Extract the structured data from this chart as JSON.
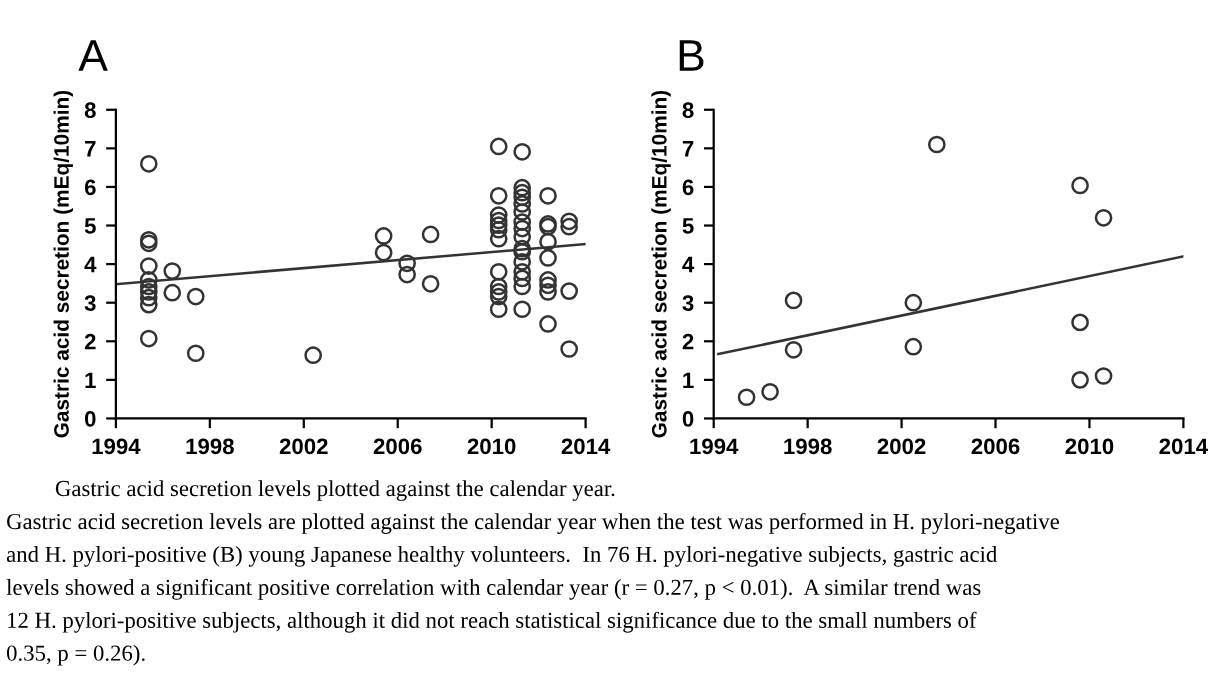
{
  "chart_data": [
    {
      "type": "scatter",
      "title": "A",
      "xlabel": null,
      "ylabel": "Gastric acid secretion (mEq/10min)",
      "xlim": [
        1994,
        2014
      ],
      "xticks": [
        1994,
        1998,
        2002,
        2006,
        2010,
        2014
      ],
      "ylim": [
        0,
        8
      ],
      "yticks": [
        0,
        1,
        2,
        3,
        4,
        5,
        6,
        7,
        8
      ],
      "grid": false,
      "legend": false,
      "series": [
        {
          "marker": "circle",
          "color": "#333333",
          "x": [
            1995.4,
            1995.4,
            1995.4,
            1995.4,
            1995.4,
            1995.4,
            1995.4,
            1995.4,
            1995.4,
            1995.4,
            1996.4,
            1996.4,
            1997.4,
            1997.4,
            2002.4,
            2005.4,
            2005.4,
            2006.4,
            2006.4,
            2007.4,
            2007.4,
            2010.3,
            2010.3,
            2010.3,
            2010.3,
            2010.3,
            2010.3,
            2010.3,
            2010.3,
            2010.3,
            2010.3,
            2010.3,
            2010.3,
            2011.3,
            2011.3,
            2011.3,
            2011.3,
            2011.3,
            2011.3,
            2011.3,
            2011.3,
            2011.3,
            2011.3,
            2011.3,
            2011.3,
            2011.3,
            2011.3,
            2011.3,
            2011.3,
            2012.4,
            2012.4,
            2012.4,
            2012.4,
            2012.4,
            2012.4,
            2012.4,
            2012.4,
            2012.4,
            2013.3,
            2013.3,
            2013.3,
            2013.3
          ],
          "values": [
            6.6,
            4.63,
            4.54,
            3.95,
            3.59,
            3.42,
            3.28,
            3.13,
            2.95,
            2.07,
            3.82,
            3.26,
            3.16,
            1.69,
            1.64,
            4.73,
            4.3,
            4.02,
            3.73,
            4.77,
            3.49,
            7.05,
            5.77,
            5.27,
            5.13,
            5.01,
            4.89,
            4.66,
            3.8,
            3.42,
            3.28,
            3.16,
            2.83,
            6.91,
            5.98,
            5.85,
            5.73,
            5.56,
            5.35,
            5.09,
            4.92,
            4.71,
            4.4,
            4.32,
            4.06,
            3.8,
            3.63,
            3.42,
            2.83,
            5.77,
            5.04,
            4.97,
            4.58,
            4.16,
            3.59,
            3.45,
            3.28,
            2.45,
            5.11,
            4.97,
            3.3,
            1.8
          ]
        },
        {
          "type": "line",
          "color": "#333333",
          "x": [
            1994,
            2014
          ],
          "values": [
            3.48,
            4.52
          ]
        }
      ]
    },
    {
      "type": "scatter",
      "title": "B",
      "xlabel": null,
      "ylabel": "Gastric acid secretion (mEq/10min)",
      "xlim": [
        1994,
        2014
      ],
      "xticks": [
        1994,
        1998,
        2002,
        2006,
        2010,
        2014
      ],
      "ylim": [
        0,
        8
      ],
      "yticks": [
        0,
        1,
        2,
        3,
        4,
        5,
        6,
        7,
        8
      ],
      "grid": false,
      "legend": false,
      "series": [
        {
          "marker": "circle",
          "color": "#333333",
          "x": [
            1995.4,
            1996.4,
            1997.4,
            1997.4,
            2002.5,
            2002.5,
            2003.5,
            2009.6,
            2009.6,
            2009.6,
            2010.6,
            2010.6
          ],
          "values": [
            0.55,
            0.69,
            3.06,
            1.78,
            3.0,
            1.86,
            7.1,
            6.04,
            2.49,
            1.0,
            5.2,
            1.1
          ]
        },
        {
          "type": "line",
          "color": "#333333",
          "x": [
            1994.2,
            2014
          ],
          "values": [
            1.67,
            4.2
          ]
        }
      ],
      "annotations": [
        "Gastric acid secretion levels plotted against the calendar year.",
        "Gastric acid secretion levels are plotted against the calendar year when the test was performed in H. pylori-negative",
        "and H. pylori-positive (B) young Japanese healthy volunteers.  In 76 H. pylori-negative subjects, gastric acid",
        "levels showed a significant positive correlation with calendar year (r = 0.27, p < 0.01).  A similar trend was",
        "12 H. pylori-positive subjects, although it did not reach statistical significance due to the small numbers of",
        "0.35, p = 0.26)."
      ]
    }
  ]
}
